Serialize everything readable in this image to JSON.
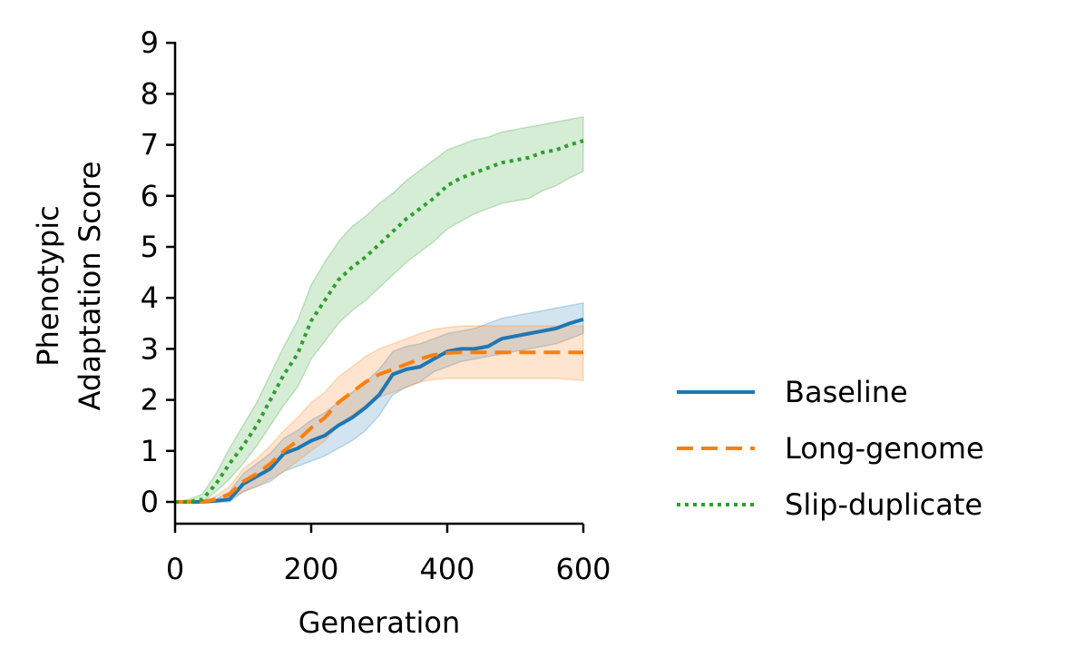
{
  "chart_data": {
    "type": "line",
    "xlabel": "Generation",
    "ylabel_lines": [
      "Phenotypic",
      "Adaptation Score"
    ],
    "xlim": [
      0,
      600
    ],
    "ylim": [
      -0.4,
      9
    ],
    "xticks": [
      "0",
      "200",
      "400",
      "600"
    ],
    "yticks": [
      "0",
      "1",
      "2",
      "3",
      "4",
      "5",
      "6",
      "7",
      "8",
      "9"
    ],
    "grid": false,
    "legend_position": "right",
    "x": [
      0,
      20,
      40,
      60,
      80,
      100,
      120,
      140,
      160,
      180,
      200,
      220,
      240,
      260,
      280,
      300,
      320,
      340,
      360,
      380,
      400,
      420,
      440,
      460,
      480,
      500,
      520,
      540,
      560,
      580,
      600
    ],
    "series": [
      {
        "name": "Baseline",
        "color": "#1f77b4",
        "style": "solid",
        "values": [
          0,
          0,
          0,
          0.02,
          0.05,
          0.35,
          0.5,
          0.65,
          0.95,
          1.05,
          1.2,
          1.3,
          1.5,
          1.65,
          1.85,
          2.1,
          2.5,
          2.6,
          2.65,
          2.8,
          2.95,
          3.0,
          3.0,
          3.05,
          3.2,
          3.25,
          3.3,
          3.35,
          3.4,
          3.5,
          3.58
        ],
        "lower": [
          0,
          0,
          0,
          0,
          0,
          0.2,
          0.3,
          0.4,
          0.6,
          0.7,
          0.8,
          0.9,
          1.05,
          1.2,
          1.4,
          1.7,
          2.1,
          2.25,
          2.35,
          2.55,
          2.65,
          2.75,
          2.8,
          2.85,
          2.9,
          2.95,
          3.0,
          3.05,
          3.1,
          3.2,
          3.3
        ],
        "upper": [
          0,
          0,
          0,
          0.05,
          0.2,
          0.55,
          0.75,
          0.95,
          1.25,
          1.4,
          1.6,
          1.75,
          1.95,
          2.15,
          2.35,
          2.6,
          2.95,
          3.05,
          3.1,
          3.2,
          3.3,
          3.35,
          3.4,
          3.5,
          3.6,
          3.65,
          3.7,
          3.75,
          3.8,
          3.85,
          3.9
        ]
      },
      {
        "name": "Long-genome",
        "color": "#ff7f0e",
        "style": "dashed",
        "values": [
          0,
          0,
          0,
          0.05,
          0.15,
          0.4,
          0.55,
          0.75,
          1.0,
          1.2,
          1.45,
          1.65,
          1.95,
          2.15,
          2.35,
          2.5,
          2.6,
          2.7,
          2.8,
          2.88,
          2.92,
          2.93,
          2.93,
          2.93,
          2.93,
          2.93,
          2.93,
          2.93,
          2.93,
          2.93,
          2.93
        ],
        "lower": [
          0,
          0,
          0,
          0,
          0.05,
          0.2,
          0.3,
          0.45,
          0.6,
          0.8,
          1.0,
          1.2,
          1.5,
          1.7,
          1.9,
          2.05,
          2.15,
          2.25,
          2.35,
          2.4,
          2.42,
          2.42,
          2.42,
          2.42,
          2.42,
          2.42,
          2.42,
          2.42,
          2.42,
          2.4,
          2.38
        ],
        "upper": [
          0,
          0,
          0,
          0.12,
          0.3,
          0.65,
          0.85,
          1.1,
          1.4,
          1.65,
          1.95,
          2.15,
          2.45,
          2.65,
          2.85,
          3.0,
          3.1,
          3.2,
          3.3,
          3.38,
          3.42,
          3.45,
          3.45,
          3.45,
          3.45,
          3.45,
          3.45,
          3.45,
          3.45,
          3.45,
          3.45
        ]
      },
      {
        "name": "Slip-duplicate",
        "color": "#2ca02c",
        "style": "dotted",
        "values": [
          0,
          0,
          0.05,
          0.35,
          0.75,
          1.1,
          1.5,
          2.0,
          2.5,
          2.9,
          3.55,
          3.95,
          4.35,
          4.6,
          4.8,
          5.05,
          5.3,
          5.55,
          5.75,
          5.95,
          6.2,
          6.35,
          6.45,
          6.55,
          6.65,
          6.7,
          6.75,
          6.85,
          6.9,
          7.0,
          7.08
        ],
        "lower": [
          0,
          0,
          0,
          0.2,
          0.45,
          0.75,
          1.1,
          1.5,
          1.9,
          2.25,
          2.8,
          3.15,
          3.5,
          3.75,
          3.95,
          4.2,
          4.45,
          4.7,
          4.9,
          5.1,
          5.35,
          5.5,
          5.65,
          5.75,
          5.85,
          5.9,
          5.95,
          6.1,
          6.2,
          6.35,
          6.48
        ],
        "upper": [
          0,
          0.05,
          0.15,
          0.55,
          1.05,
          1.5,
          1.95,
          2.5,
          3.05,
          3.55,
          4.25,
          4.7,
          5.1,
          5.4,
          5.6,
          5.85,
          6.05,
          6.3,
          6.5,
          6.7,
          6.9,
          7.0,
          7.1,
          7.15,
          7.25,
          7.3,
          7.35,
          7.4,
          7.45,
          7.5,
          7.55
        ]
      }
    ]
  }
}
